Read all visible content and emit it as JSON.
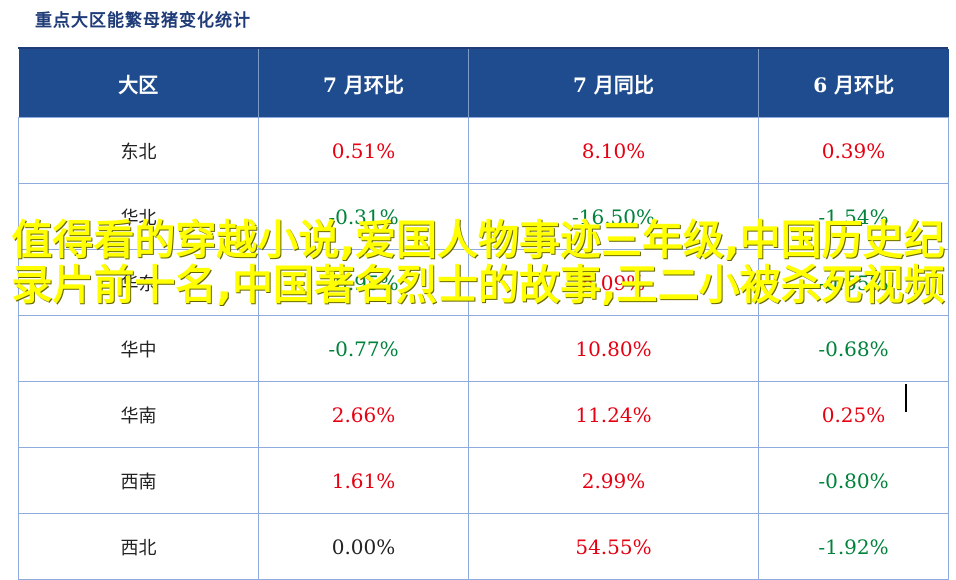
{
  "title": "重点大区能繁母猪变化统计",
  "table": {
    "headers": [
      "大区",
      "7 月环比",
      "7 月同比",
      "6 月环比"
    ],
    "rows": [
      [
        "东北",
        "0.51%",
        "8.10%",
        "0.39%"
      ],
      [
        "华北",
        "-0.31%",
        "-16.50%",
        "-1.54%"
      ],
      [
        "华东",
        "-0.95%",
        "5.09%",
        "-0.55%"
      ],
      [
        "华中",
        "-0.77%",
        "10.80%",
        "-0.68%"
      ],
      [
        "华南",
        "2.66%",
        "11.24%",
        "0.25%"
      ],
      [
        "西南",
        "1.61%",
        "2.99%",
        "-0.80%"
      ],
      [
        "西北",
        "0.00%",
        "54.55%",
        "-1.92%"
      ]
    ]
  },
  "overlay_text": "值得看的穿越小说,爱国人物事迹三年级,中国历史纪录片前十名,中国著名烈士的故事,王二小被杀死视频",
  "colors": {
    "header_bg": "#1f4c8f",
    "positive": "#e60012",
    "negative": "#00823b",
    "overlay": "#ffff00"
  }
}
